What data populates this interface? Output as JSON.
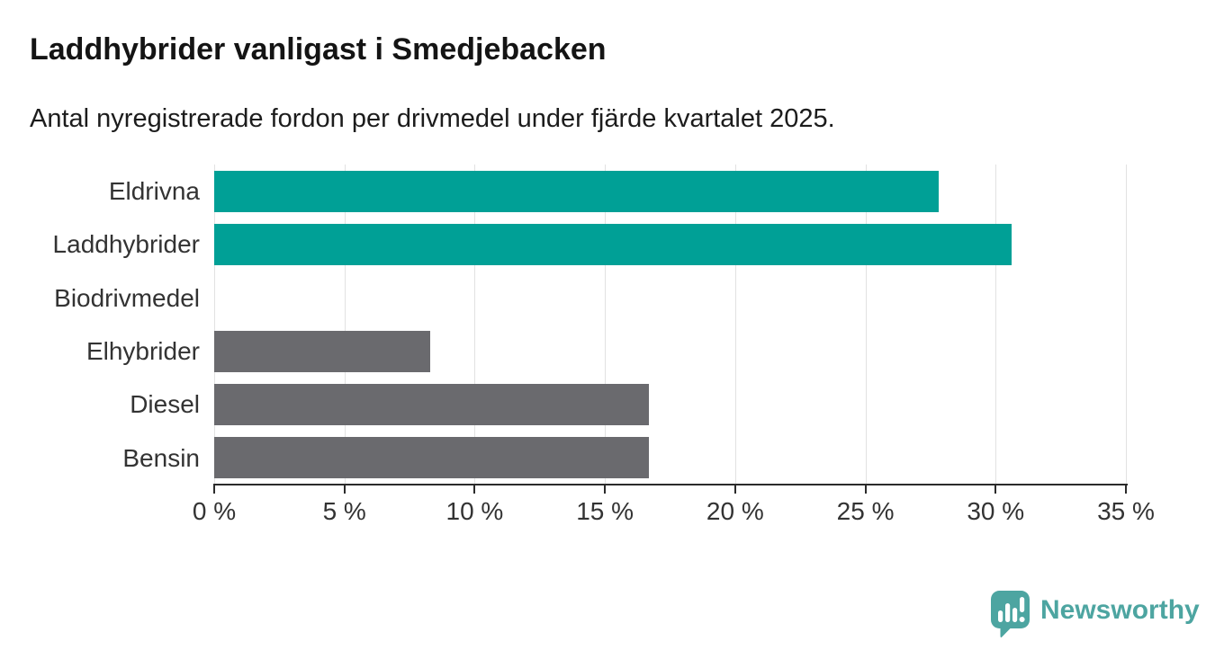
{
  "header": {
    "title": "Laddhybrider vanligast i Smedjebacken",
    "subtitle": "Antal nyregistrerade fordon per drivmedel under fjärde kvartalet 2025."
  },
  "chart_data": {
    "type": "bar",
    "orientation": "horizontal",
    "title": "Laddhybrider vanligast i Smedjebacken",
    "subtitle": "Antal nyregistrerade fordon per drivmedel under fjärde kvartalet 2025.",
    "categories": [
      "Eldrivna",
      "Laddhybrider",
      "Biodrivmedel",
      "Elhybrider",
      "Diesel",
      "Bensin"
    ],
    "values": [
      27.8,
      30.6,
      0,
      8.3,
      16.7,
      16.7
    ],
    "unit": "%",
    "xlabel": "",
    "ylabel": "",
    "xlim": [
      0,
      35
    ],
    "ticks": [
      0,
      5,
      10,
      15,
      20,
      25,
      30,
      35
    ],
    "tick_labels": [
      "0 %",
      "5 %",
      "10 %",
      "15 %",
      "20 %",
      "25 %",
      "30 %",
      "35 %"
    ],
    "bar_colors": [
      "#00a096",
      "#00a096",
      "#6a6a6e",
      "#6a6a6e",
      "#6a6a6e",
      "#6a6a6e"
    ],
    "highlight_color": "#00a096",
    "default_color": "#6a6a6e",
    "grid": true,
    "legend": "none"
  },
  "branding": {
    "name": "Newsworthy",
    "icon": "newsworthy-chart-bubble-icon",
    "color": "#4da5a1"
  },
  "colors": {
    "title_text": "#141414",
    "subtitle_text": "#1c1c1c",
    "label_text": "#333333",
    "axis_line": "#2b2b2b",
    "gridline": "#e2e2e2",
    "background": "#ffffff"
  }
}
